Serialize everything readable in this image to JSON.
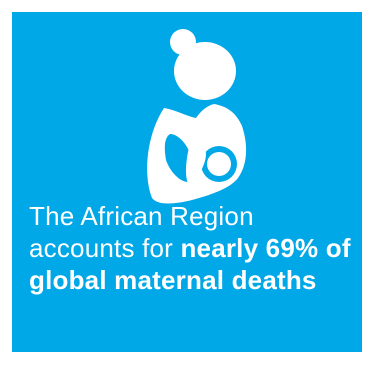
{
  "colors": {
    "background": "#00a8e8",
    "foreground": "#ffffff"
  },
  "icon": {
    "name": "breastfeeding-mother-icon"
  },
  "statement": {
    "lead_text": "The African Region accounts for ",
    "highlight_text": "nearly 69% of global maternal deaths"
  }
}
